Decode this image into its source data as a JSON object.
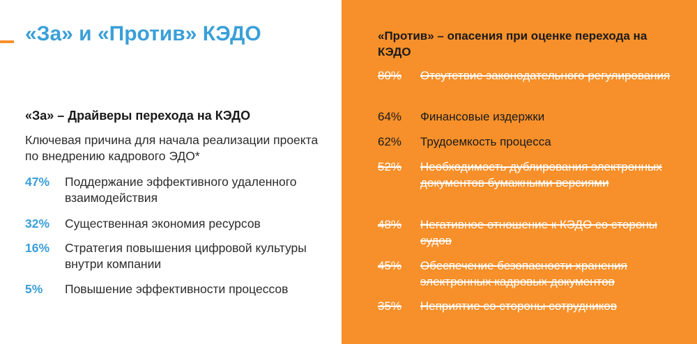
{
  "title": "«За» и «Против» КЭДО",
  "colors": {
    "accent_blue": "#3a9fd8",
    "accent_orange": "#f7902a"
  },
  "pro": {
    "heading": "«За» – Драйверы перехода на КЭДО",
    "intro": "Ключевая причина для начала реализации проекта по внедрению кадрового ЭДО*",
    "items": [
      {
        "pct": "47%",
        "text": "Поддержание эффективного удаленного взаимодействия"
      },
      {
        "pct": "32%",
        "text": "Существенная экономия ресурсов"
      },
      {
        "pct": "16%",
        "text": "Стратегия повышения цифровой культуры внутри компании"
      },
      {
        "pct": "5%",
        "text": "Повышение эффективности процессов"
      }
    ]
  },
  "con": {
    "heading": "«Против» – опасения при оценке перехода на КЭДО",
    "items": [
      {
        "pct": "80%",
        "text": "Отсутствие законодательного регулирования",
        "struck": true
      },
      {
        "pct": "64%",
        "text": "Финансовые издержки",
        "struck": false
      },
      {
        "pct": "62%",
        "text": "Трудоемкость процесса",
        "struck": false
      },
      {
        "pct": "52%",
        "text": "Необходимость дублирования электронных документов бумажными версиями",
        "struck": true
      },
      {
        "pct": "48%",
        "text": "Негативное отношение к КЭДО со стороны судов",
        "struck": true
      },
      {
        "pct": "45%",
        "text": "Обеспечение безопасности хранения электронных кадровых документов",
        "struck": true
      },
      {
        "pct": "35%",
        "text": "Неприятие со стороны сотрудников",
        "struck": true
      }
    ]
  }
}
